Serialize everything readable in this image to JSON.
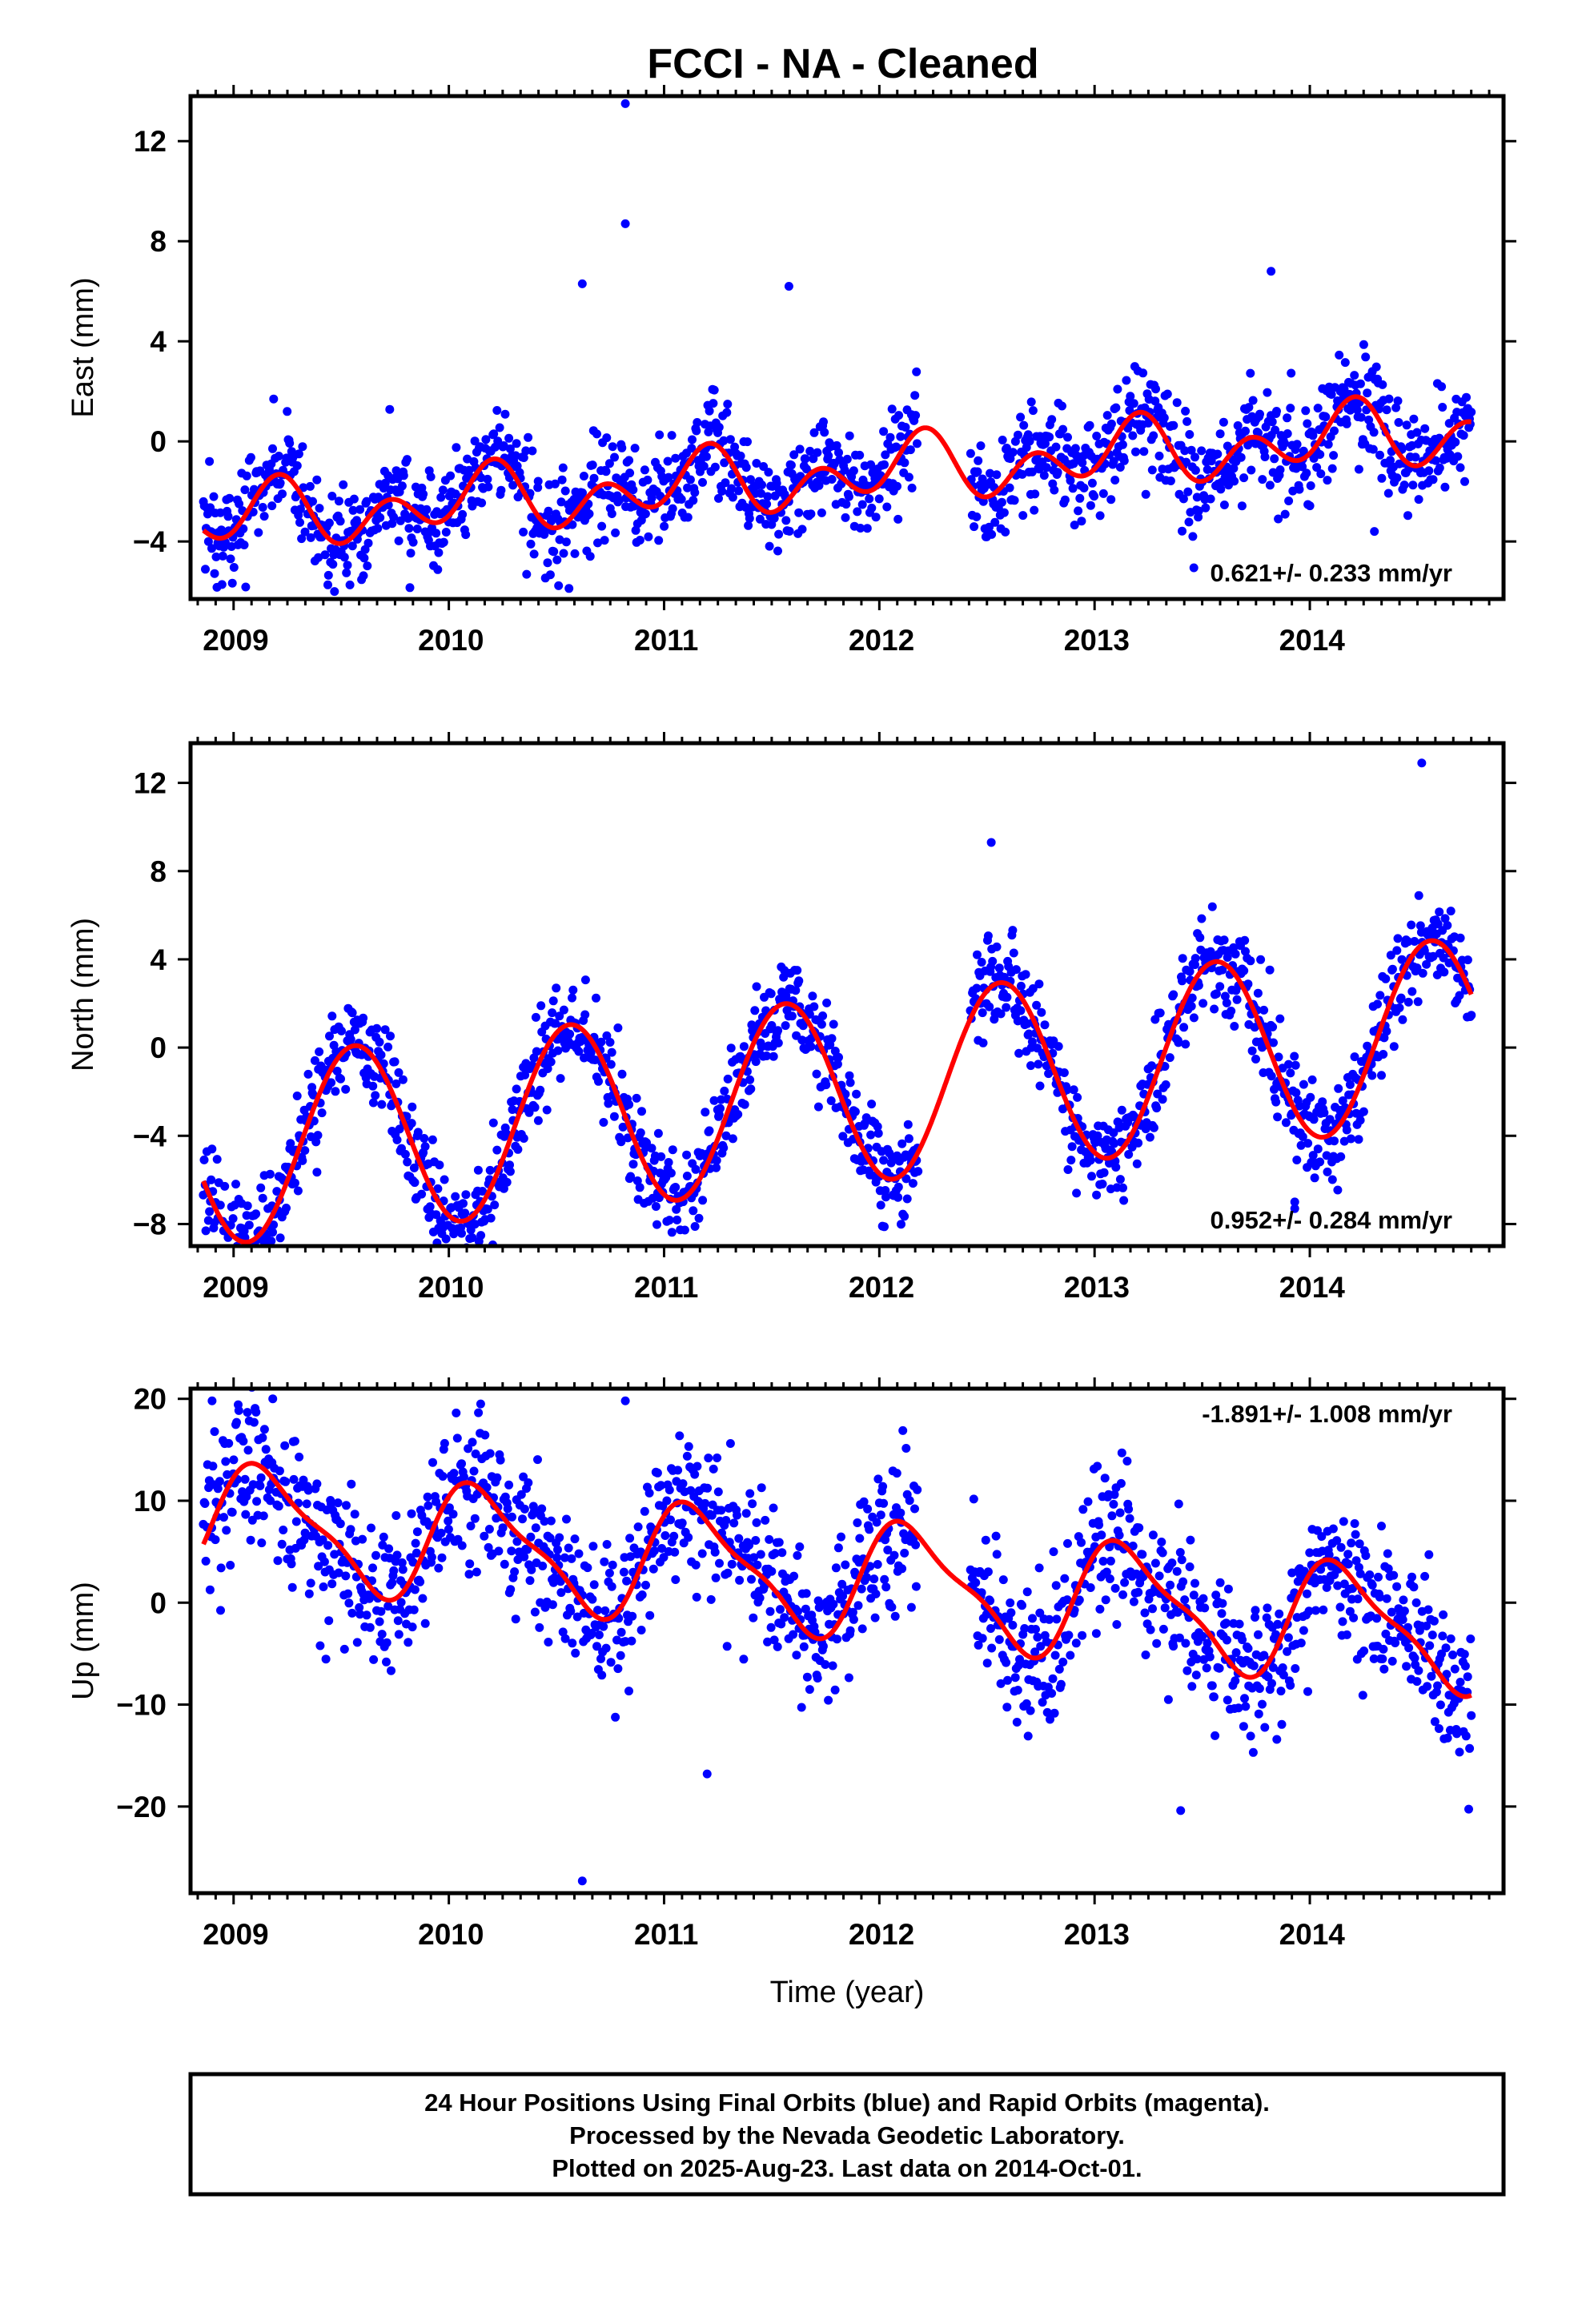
{
  "title": "FCCI  - NA - Cleaned",
  "footer": {
    "line1": "24 Hour Positions Using Final Orbits (blue) and Rapid Orbits (magenta).",
    "line2": "Processed by the Nevada Geodetic Laboratory.",
    "line3": "Plotted on 2025-Aug-23. Last data on 2014-Oct-01."
  },
  "chart_data": [
    {
      "type": "scatter",
      "ylabel": "East (mm)",
      "xlabel": "",
      "xlim": [
        2008.8,
        2014.9
      ],
      "ylim": [
        -6.3,
        13.8
      ],
      "x_ticks": [
        2009,
        2010,
        2011,
        2012,
        2013,
        2014
      ],
      "y_ticks": [
        -4,
        0,
        4,
        8,
        12
      ],
      "rate_label": "0.621+/- 0.233 mm/yr",
      "rate_position": "bottom-right",
      "data_range": [
        2008.86,
        2014.75
      ],
      "colors": {
        "points": "#0000ff",
        "model": "#ff0000"
      },
      "model": {
        "offset": -1.35,
        "trend": 0.621,
        "annual_cos": 0.4,
        "annual_sin": 0.6,
        "semi_cos": -0.9,
        "semi_sin": 0.35
      },
      "scatter_sigma": 1.05,
      "point_count": 1500,
      "notable_points": [
        [
          2010.82,
          13.5
        ],
        [
          2010.82,
          8.7
        ],
        [
          2010.62,
          6.3
        ],
        [
          2011.58,
          6.2
        ],
        [
          2013.82,
          6.8
        ],
        [
          2014.3,
          -3.6
        ]
      ],
      "series": [
        {
          "name": "",
          "style": "points"
        },
        {
          "name": "",
          "style": "line"
        }
      ]
    },
    {
      "type": "scatter",
      "ylabel": "North (mm)",
      "xlabel": "",
      "xlim": [
        2008.8,
        2014.9
      ],
      "ylim": [
        -9.0,
        13.8
      ],
      "x_ticks": [
        2009,
        2010,
        2011,
        2012,
        2013,
        2014
      ],
      "y_ticks": [
        -8,
        -4,
        0,
        4,
        8,
        12
      ],
      "rate_label": "0.952+/- 0.284 mm/yr",
      "rate_position": "bottom-right",
      "data_range": [
        2008.86,
        2014.75
      ],
      "colors": {
        "points": "#0000ff",
        "model": "#ff0000"
      },
      "model": {
        "offset": -2.0,
        "trend": 0.952,
        "annual_cos": -3.9,
        "annual_sin": -1.6,
        "semi_cos": 0.0,
        "semi_sin": 0.0
      },
      "scatter_sigma": 1.1,
      "point_count": 1500,
      "notable_points": [
        [
          2014.52,
          12.9
        ],
        [
          2012.52,
          9.3
        ],
        [
          2013.93,
          -7.3
        ],
        [
          2013.93,
          -7.0
        ]
      ],
      "series": [
        {
          "name": "",
          "style": "points"
        },
        {
          "name": "",
          "style": "line"
        }
      ]
    },
    {
      "type": "scatter",
      "ylabel": "Up (mm)",
      "xlabel": "Time (year)",
      "xlim": [
        2008.8,
        2014.9
      ],
      "ylim": [
        -28.5,
        21.0
      ],
      "x_ticks": [
        2009,
        2010,
        2011,
        2012,
        2013,
        2014
      ],
      "y_ticks": [
        -20,
        -10,
        0,
        10,
        20
      ],
      "rate_label": "-1.891+/- 1.008 mm/yr",
      "rate_position": "top-right",
      "data_range": [
        2008.86,
        2014.75
      ],
      "colors": {
        "points": "#0000ff",
        "model": "#ff0000"
      },
      "model": {
        "offset": 2.5,
        "trend": -1.891,
        "annual_cos": 3.0,
        "annual_sin": 4.5,
        "semi_cos": 1.5,
        "semi_sin": 0.5
      },
      "scatter_sigma": 3.6,
      "point_count": 1500,
      "notable_points": [
        [
          2010.62,
          -27.3
        ],
        [
          2008.9,
          19.8
        ],
        [
          2010.82,
          19.8
        ],
        [
          2013.4,
          -20.4
        ],
        [
          2011.2,
          -16.8
        ]
      ],
      "series": [
        {
          "name": "",
          "style": "points"
        },
        {
          "name": "",
          "style": "line"
        }
      ]
    }
  ]
}
